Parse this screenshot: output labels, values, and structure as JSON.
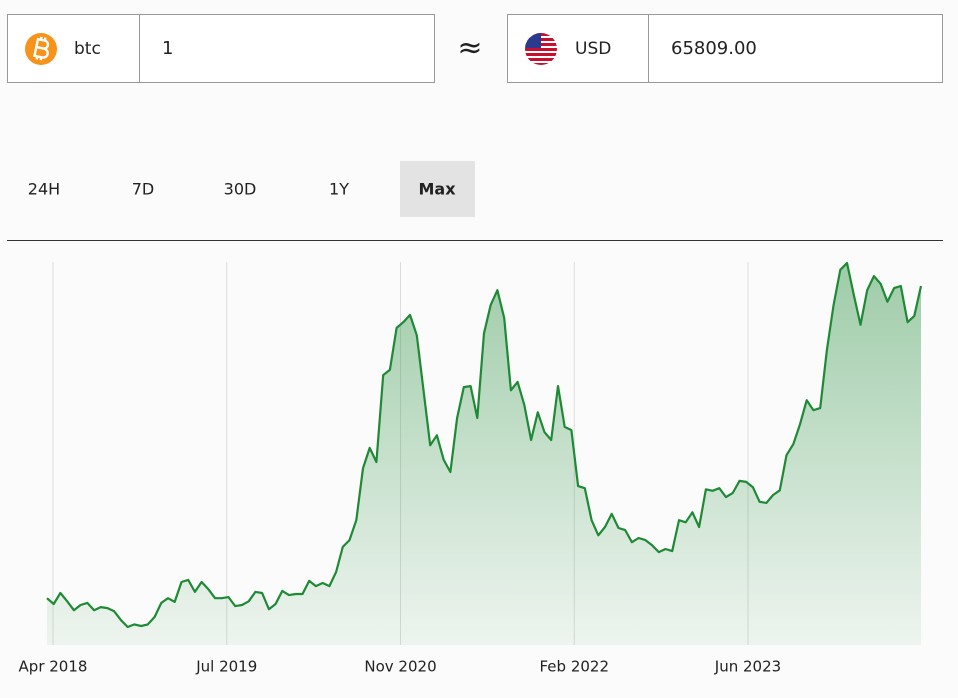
{
  "converter": {
    "from": {
      "symbol": "btc",
      "amount": "1"
    },
    "approx": "≈",
    "to": {
      "currency": "USD",
      "amount": "65809.00"
    }
  },
  "tabs": [
    {
      "label": "24H"
    },
    {
      "label": "7D"
    },
    {
      "label": "30D"
    },
    {
      "label": "1Y"
    },
    {
      "label": "Max",
      "active": true
    }
  ],
  "chart_data": {
    "type": "area",
    "color": "#1e8a35",
    "xticks": [
      "Apr 2018",
      "Jul 2019",
      "Nov 2020",
      "Feb 2022",
      "Jun 2023"
    ],
    "grid": true,
    "series": [
      {
        "values": [
          9000,
          7900,
          10000,
          8400,
          6700,
          7700,
          8100,
          6700,
          7300,
          7100,
          6500,
          4800,
          3500,
          4000,
          3700,
          4000,
          5400,
          8100,
          9000,
          8300,
          12100,
          12500,
          10200,
          12100,
          10700,
          9000,
          9000,
          9200,
          7500,
          7700,
          8400,
          10200,
          10000,
          6900,
          7900,
          10400,
          9600,
          9800,
          9800,
          12300,
          11300,
          11900,
          11300,
          14000,
          18800,
          20100,
          23900,
          33800,
          37700,
          35000,
          51600,
          52600,
          60600,
          61700,
          63100,
          59200,
          48700,
          38200,
          40100,
          35400,
          33100,
          43400,
          49300,
          49500,
          43400,
          59600,
          65000,
          67800,
          62500,
          48700,
          50300,
          45900,
          39200,
          44500,
          40700,
          39200,
          49500,
          41700,
          41100,
          30400,
          30000,
          23900,
          21000,
          22600,
          25100,
          22400,
          22000,
          19700,
          20500,
          20100,
          19100,
          17800,
          18400,
          18000,
          23900,
          23500,
          25400,
          22600,
          29800,
          29500,
          30000,
          28300,
          29100,
          31400,
          31200,
          30200,
          27400,
          27200,
          28700,
          29600,
          36300,
          38400,
          42200,
          46800,
          44900,
          45300,
          56400,
          65000,
          71700,
          73000,
          66900,
          61200,
          67800,
          70500,
          69000,
          65600,
          68200,
          68600,
          61700,
          62900,
          68600
        ]
      }
    ]
  }
}
